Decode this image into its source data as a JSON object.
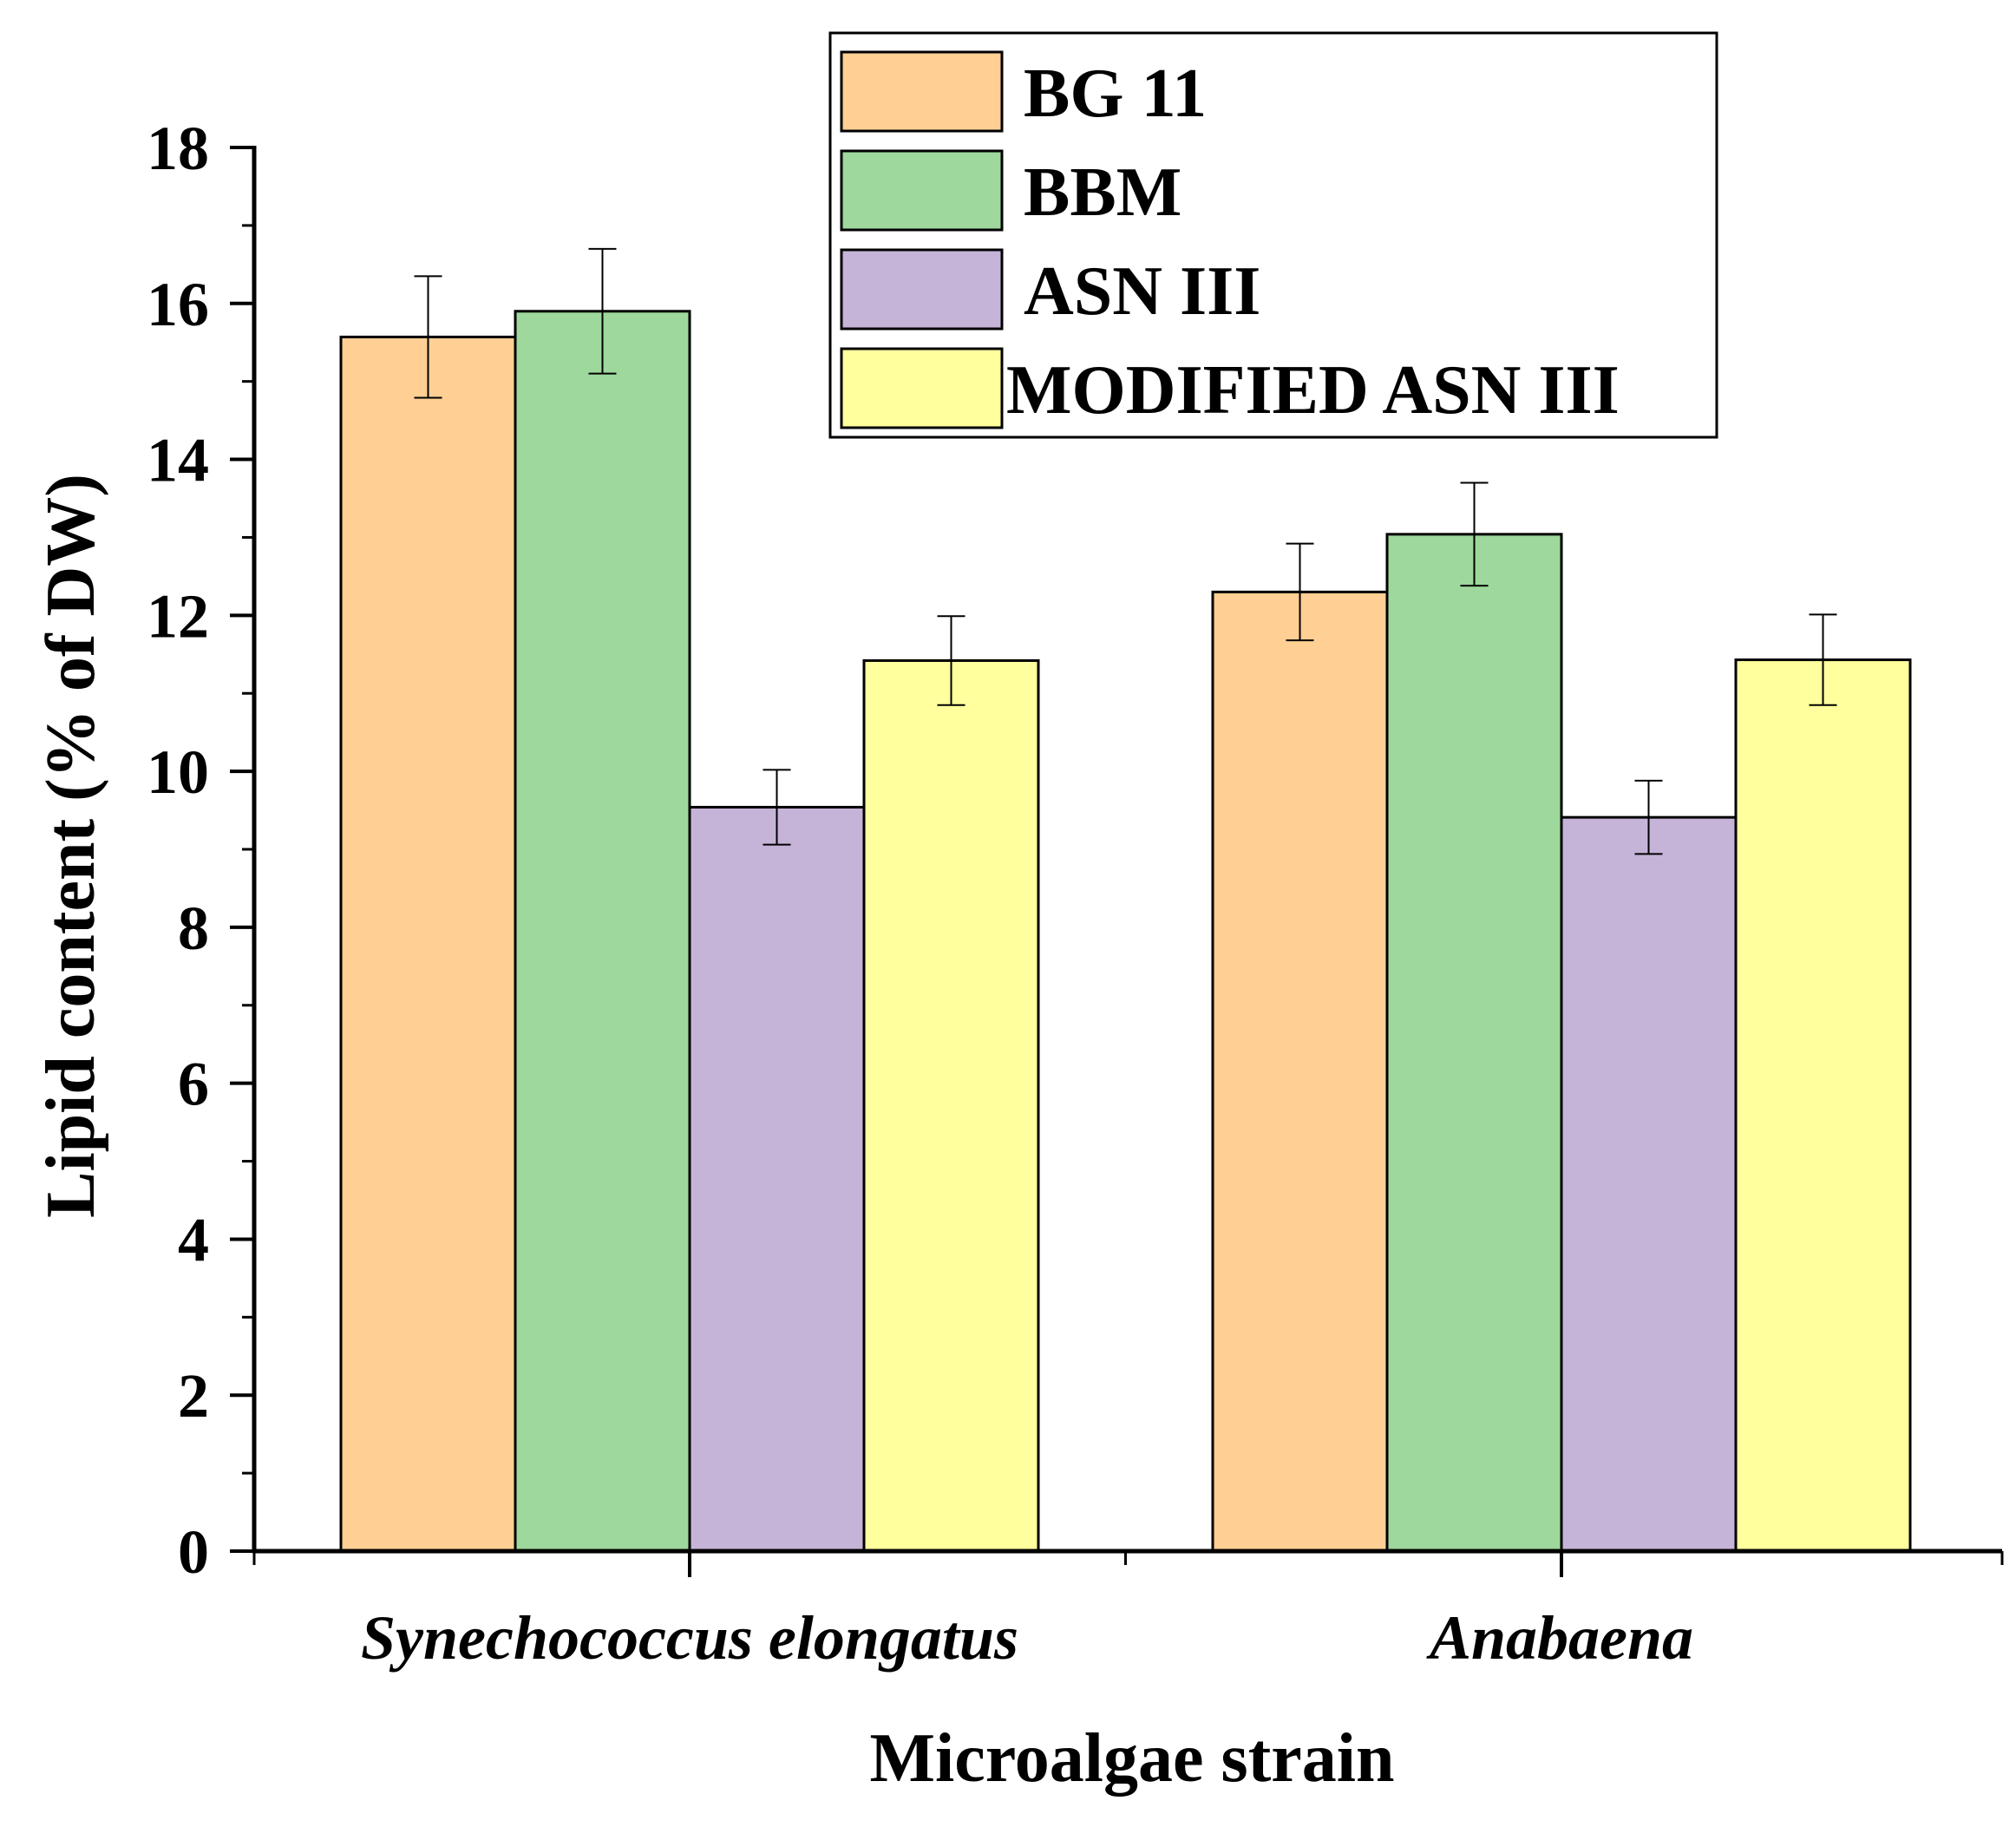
{
  "chart_data": {
    "type": "bar",
    "title": "",
    "xlabel": "Microalgae strain",
    "ylabel": "Lipid content (% of DW)",
    "ylim": [
      0,
      18
    ],
    "yticks": [
      "0",
      "2",
      "4",
      "6",
      "8",
      "10",
      "12",
      "14",
      "16",
      "18"
    ],
    "categories": [
      "Synechococcus elongatus",
      "Anabaena"
    ],
    "series": [
      {
        "name": "BG 11",
        "color": "#FFCF94",
        "values": [
          15.57,
          12.3
        ],
        "errors": [
          0.78,
          0.62
        ]
      },
      {
        "name": "BBM",
        "color": "#9ED89C",
        "values": [
          15.9,
          13.04
        ],
        "errors": [
          0.8,
          0.66
        ]
      },
      {
        "name": "ASN III",
        "color": "#C5B4D8",
        "values": [
          9.54,
          9.41
        ],
        "errors": [
          0.48,
          0.47
        ]
      },
      {
        "name": "MODIFIED ASN III",
        "color": "#FFFF9E",
        "values": [
          11.42,
          11.43
        ],
        "errors": [
          0.57,
          0.58
        ]
      }
    ],
    "legend_position": "top-right",
    "grid": false
  }
}
